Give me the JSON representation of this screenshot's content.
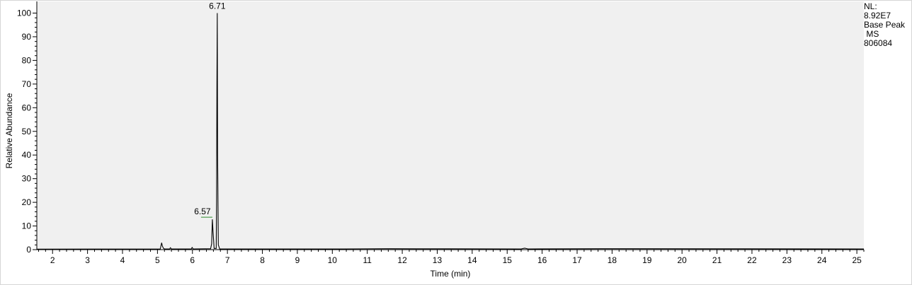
{
  "chart_data": {
    "type": "line",
    "xlabel": "Time (min)",
    "ylabel": "Relative Abundance",
    "xlim": [
      1.55,
      25.2
    ],
    "ylim": [
      0,
      100
    ],
    "x_ticks": [
      2,
      3,
      4,
      5,
      6,
      7,
      8,
      9,
      10,
      11,
      12,
      13,
      14,
      15,
      16,
      17,
      18,
      19,
      20,
      21,
      22,
      23,
      24,
      25
    ],
    "y_ticks": [
      0,
      10,
      20,
      30,
      40,
      50,
      60,
      70,
      80,
      90,
      100
    ],
    "grid": false,
    "series": [
      {
        "x": [
          1.55,
          5.08,
          5.12,
          5.14,
          5.17,
          5.2,
          5.35,
          5.37,
          5.4,
          5.97,
          5.99,
          6.02,
          6.52,
          6.55,
          6.57,
          6.59,
          6.62,
          6.68,
          6.69,
          6.7,
          6.71,
          6.72,
          6.74,
          6.78,
          10.3,
          11.6,
          12.4,
          13.1,
          15.4,
          15.5,
          15.6,
          17.7,
          21.7,
          25.2
        ],
        "y": [
          0.2,
          0.3,
          2.9,
          1.5,
          0.6,
          0.3,
          0.3,
          0.8,
          0.3,
          0.3,
          0.9,
          0.3,
          0.4,
          2.5,
          12.8,
          7.5,
          0.5,
          0.5,
          20,
          70,
          100,
          40,
          2,
          0.3,
          0.3,
          0.4,
          0.35,
          0.35,
          0.3,
          0.6,
          0.3,
          0.4,
          0.35,
          0.3
        ]
      }
    ],
    "annotations": [
      {
        "label": "6.71",
        "x": 6.71,
        "y": 100
      },
      {
        "label": "6.57",
        "x": 6.57,
        "y": 12.8
      }
    ]
  },
  "info": {
    "nl_label": "NL:",
    "nl_value": "8.92E7",
    "filter": "Base Peak",
    "mode": " MS",
    "sample": "806084"
  },
  "colors": {
    "plot_background": "#f0f0f0",
    "trace": "#000000",
    "peak_label_line": "#2e8b2e"
  }
}
